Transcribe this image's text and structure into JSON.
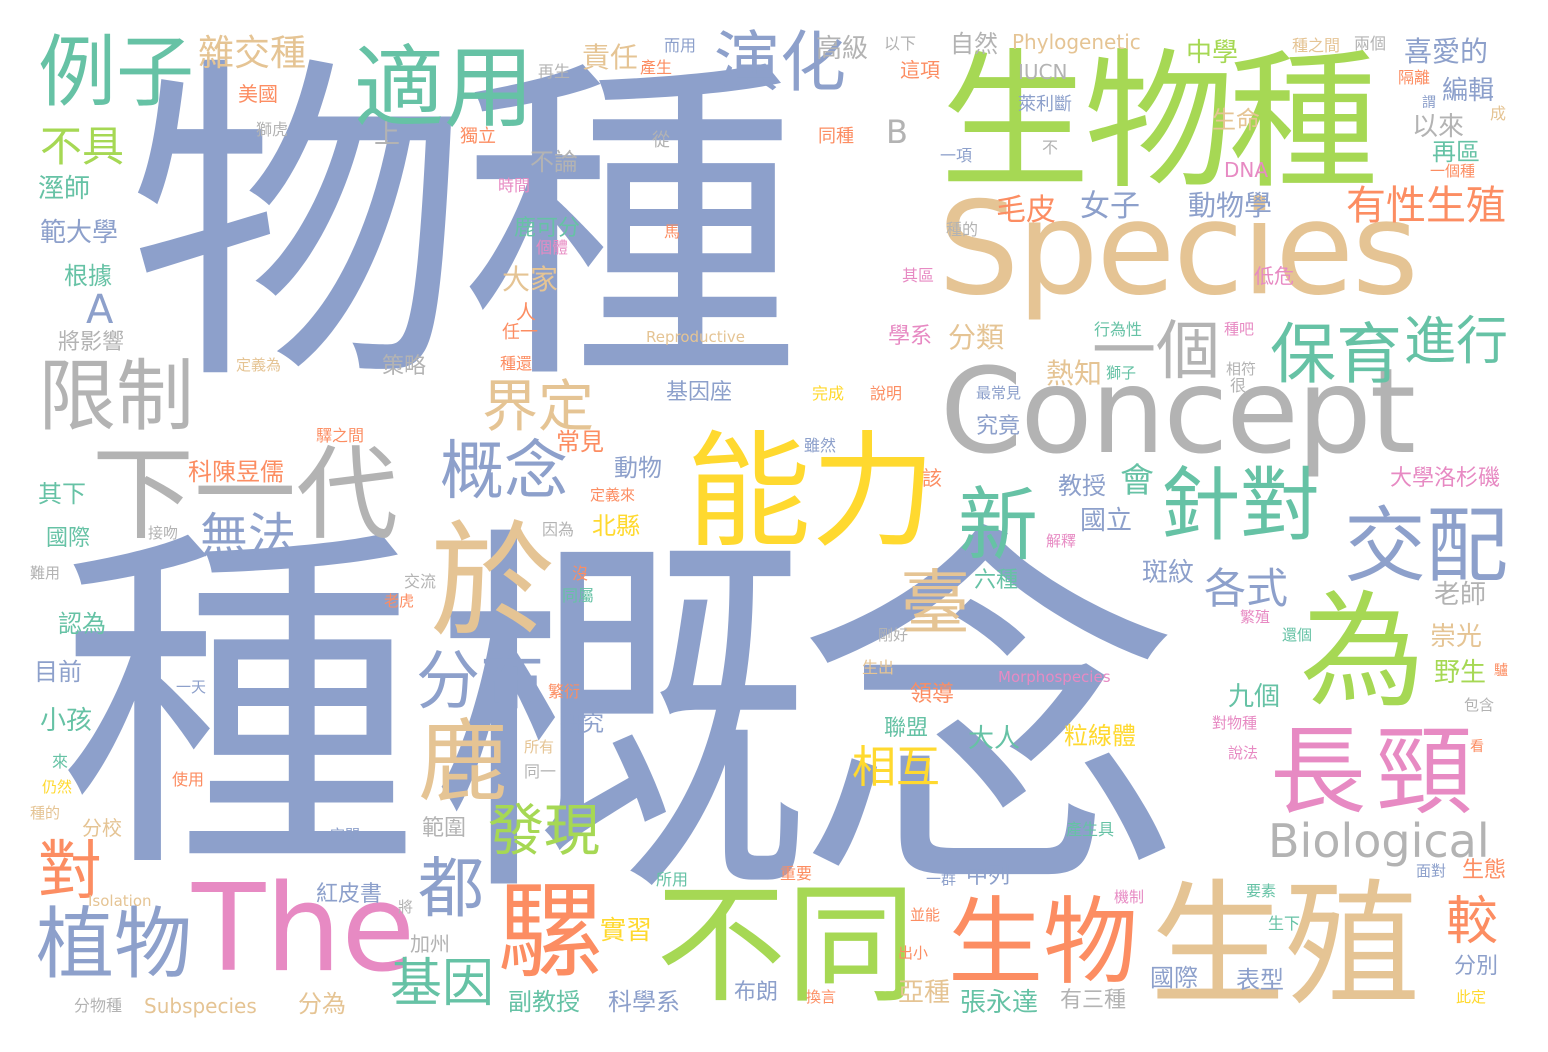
{
  "palette": {
    "blue": "#8da0cb",
    "green": "#a6d854",
    "teal": "#66c2a5",
    "orange": "#fc8d62",
    "pink": "#e78ac3",
    "yellow": "#ffd92f",
    "tan": "#e5c494",
    "grey": "#b3b3b3"
  },
  "words": [
    {
      "text": "物種",
      "color": "blue"
    },
    {
      "text": "種",
      "color": "blue"
    },
    {
      "text": "概念",
      "color": "blue"
    },
    {
      "text": "生物種",
      "color": "green"
    },
    {
      "text": "Species",
      "color": "tan"
    },
    {
      "text": "Concept",
      "color": "grey"
    },
    {
      "text": "生殖",
      "color": "tan"
    },
    {
      "text": "能力",
      "color": "yellow"
    },
    {
      "text": "不同",
      "color": "green"
    },
    {
      "text": "The",
      "color": "pink"
    },
    {
      "text": "於",
      "color": "tan"
    },
    {
      "text": "為",
      "color": "green"
    },
    {
      "text": "下一代",
      "color": "grey"
    },
    {
      "text": "長頸",
      "color": "pink"
    },
    {
      "text": "生物",
      "color": "orange"
    },
    {
      "text": "騾",
      "color": "orange"
    },
    {
      "text": "適用",
      "color": "teal"
    },
    {
      "text": "例子",
      "color": "teal"
    },
    {
      "text": "限制",
      "color": "grey"
    },
    {
      "text": "演化",
      "color": "blue"
    },
    {
      "text": "針對",
      "color": "teal"
    },
    {
      "text": "交配",
      "color": "blue"
    },
    {
      "text": "鹿",
      "color": "tan"
    },
    {
      "text": "保育",
      "color": "teal"
    },
    {
      "text": "新",
      "color": "teal"
    },
    {
      "text": "一個",
      "color": "grey"
    },
    {
      "text": "植物",
      "color": "blue"
    },
    {
      "text": "概念",
      "color": "blue"
    },
    {
      "text": "都",
      "color": "blue"
    },
    {
      "text": "分布",
      "color": "blue"
    },
    {
      "text": "Biological",
      "color": "grey"
    },
    {
      "text": "發現",
      "color": "green"
    },
    {
      "text": "進行",
      "color": "teal"
    },
    {
      "text": "界定",
      "color": "tan"
    },
    {
      "text": "臺",
      "color": "tan"
    },
    {
      "text": "對",
      "color": "orange"
    },
    {
      "text": "無法",
      "color": "blue"
    },
    {
      "text": "有性生殖",
      "color": "orange"
    },
    {
      "text": "基因",
      "color": "teal"
    },
    {
      "text": "相互",
      "color": "yellow"
    },
    {
      "text": "各式",
      "color": "blue"
    },
    {
      "text": "較",
      "color": "orange"
    },
    {
      "text": "雜交種",
      "color": "tan"
    },
    {
      "text": "不具",
      "color": "green"
    },
    {
      "text": "A",
      "color": "blue"
    },
    {
      "text": "B",
      "color": "grey"
    },
    {
      "text": "毛皮",
      "color": "orange"
    },
    {
      "text": "分類",
      "color": "tan"
    },
    {
      "text": "女子",
      "color": "blue"
    },
    {
      "text": "動物學",
      "color": "blue"
    },
    {
      "text": "熱知",
      "color": "tan"
    },
    {
      "text": "會",
      "color": "teal"
    },
    {
      "text": "教授",
      "color": "blue"
    },
    {
      "text": "國立",
      "color": "blue"
    },
    {
      "text": "斑紋",
      "color": "blue"
    },
    {
      "text": "大家",
      "color": "tan"
    },
    {
      "text": "Phylogenetic",
      "color": "tan"
    },
    {
      "text": "IUCN",
      "color": "grey"
    },
    {
      "text": "中學",
      "color": "green"
    },
    {
      "text": "責任",
      "color": "tan"
    },
    {
      "text": "高級",
      "color": "grey"
    },
    {
      "text": "自然",
      "color": "grey"
    },
    {
      "text": "喜愛的",
      "color": "blue"
    },
    {
      "text": "編輯",
      "color": "blue"
    },
    {
      "text": "以來",
      "color": "grey"
    },
    {
      "text": "再區",
      "color": "teal"
    },
    {
      "text": "生命",
      "color": "tan"
    },
    {
      "text": "美國",
      "color": "orange"
    },
    {
      "text": "不論",
      "color": "grey"
    },
    {
      "text": "溼師",
      "color": "teal"
    },
    {
      "text": "範大學",
      "color": "blue"
    },
    {
      "text": "根據",
      "color": "teal"
    },
    {
      "text": "將影響",
      "color": "grey"
    },
    {
      "text": "策略",
      "color": "grey"
    },
    {
      "text": "鹿可分",
      "color": "teal"
    },
    {
      "text": "科陳昱儒",
      "color": "orange"
    },
    {
      "text": "其下",
      "color": "teal"
    },
    {
      "text": "國際",
      "color": "teal"
    },
    {
      "text": "北縣",
      "color": "yellow"
    },
    {
      "text": "動物",
      "color": "blue"
    },
    {
      "text": "認為",
      "color": "teal"
    },
    {
      "text": "目前",
      "color": "blue"
    },
    {
      "text": "小孩",
      "color": "teal"
    },
    {
      "text": "研究",
      "color": "blue"
    },
    {
      "text": "分校",
      "color": "tan"
    },
    {
      "text": "範圍",
      "color": "grey"
    },
    {
      "text": "紅皮書",
      "color": "blue"
    },
    {
      "text": "加州",
      "color": "grey"
    },
    {
      "text": "Subspecies",
      "color": "tan"
    },
    {
      "text": "分為",
      "color": "tan"
    },
    {
      "text": "實習",
      "color": "yellow"
    },
    {
      "text": "副教授",
      "color": "teal"
    },
    {
      "text": "科學系",
      "color": "blue"
    },
    {
      "text": "布朗",
      "color": "blue"
    },
    {
      "text": "亞種",
      "color": "tan"
    },
    {
      "text": "張永達",
      "color": "teal"
    },
    {
      "text": "有三種",
      "color": "grey"
    },
    {
      "text": "國際",
      "color": "blue"
    },
    {
      "text": "表型",
      "color": "blue"
    },
    {
      "text": "分別",
      "color": "blue"
    },
    {
      "text": "崇光",
      "color": "tan"
    },
    {
      "text": "野生",
      "color": "green"
    },
    {
      "text": "老師",
      "color": "grey"
    },
    {
      "text": "九個",
      "color": "teal"
    },
    {
      "text": "大學洛杉磯",
      "color": "pink"
    },
    {
      "text": "六種",
      "color": "teal"
    },
    {
      "text": "聯盟",
      "color": "teal"
    },
    {
      "text": "大人",
      "color": "teal"
    },
    {
      "text": "粒線體",
      "color": "yellow"
    },
    {
      "text": "領導",
      "color": "orange"
    },
    {
      "text": "中列",
      "color": "blue"
    },
    {
      "text": "究竟",
      "color": "blue"
    },
    {
      "text": "學系",
      "color": "pink"
    },
    {
      "text": "基因座",
      "color": "blue"
    },
    {
      "text": "DNA",
      "color": "pink"
    },
    {
      "text": "Reproductive",
      "color": "tan"
    },
    {
      "text": "Morphospecies",
      "color": "pink"
    },
    {
      "text": "Isolation",
      "color": "tan"
    },
    {
      "text": "生態",
      "color": "orange"
    },
    {
      "text": "上",
      "color": "grey"
    },
    {
      "text": "人",
      "color": "orange"
    },
    {
      "text": "任一",
      "color": "orange"
    },
    {
      "text": "常見",
      "color": "orange"
    },
    {
      "text": "而用",
      "color": "blue"
    },
    {
      "text": "以下",
      "color": "grey"
    },
    {
      "text": "這項",
      "color": "orange"
    },
    {
      "text": "再生",
      "color": "grey"
    },
    {
      "text": "產生",
      "color": "orange"
    },
    {
      "text": "獅虎",
      "color": "grey"
    },
    {
      "text": "獨立",
      "color": "orange"
    },
    {
      "text": "從",
      "color": "grey"
    },
    {
      "text": "同種",
      "color": "orange"
    },
    {
      "text": "一項",
      "color": "blue"
    },
    {
      "text": "萊利斷",
      "color": "blue"
    },
    {
      "text": "不",
      "color": "grey"
    },
    {
      "text": "種之間",
      "color": "tan"
    },
    {
      "text": "兩個",
      "color": "grey"
    },
    {
      "text": "隔離",
      "color": "orange"
    },
    {
      "text": "謂",
      "color": "blue"
    },
    {
      "text": "成",
      "color": "tan"
    },
    {
      "text": "一個種",
      "color": "orange"
    },
    {
      "text": "時間",
      "color": "pink"
    },
    {
      "text": "個體",
      "color": "pink"
    },
    {
      "text": "馬",
      "color": "orange"
    },
    {
      "text": "種的",
      "color": "grey"
    },
    {
      "text": "其區",
      "color": "pink"
    },
    {
      "text": "低危",
      "color": "pink"
    },
    {
      "text": "行為性",
      "color": "teal"
    },
    {
      "text": "種吧",
      "color": "pink"
    },
    {
      "text": "獅子",
      "color": "teal"
    },
    {
      "text": "相符",
      "color": "grey"
    },
    {
      "text": "很",
      "color": "grey"
    },
    {
      "text": "定義為",
      "color": "tan"
    },
    {
      "text": "種還",
      "color": "orange"
    },
    {
      "text": "最常見",
      "color": "blue"
    },
    {
      "text": "完成",
      "color": "yellow"
    },
    {
      "text": "說明",
      "color": "orange"
    },
    {
      "text": "雖然",
      "color": "blue"
    },
    {
      "text": "該",
      "color": "orange"
    },
    {
      "text": "解釋",
      "color": "pink"
    },
    {
      "text": "驛之間",
      "color": "orange"
    },
    {
      "text": "定義來",
      "color": "orange"
    },
    {
      "text": "因為",
      "color": "grey"
    },
    {
      "text": "接吻",
      "color": "grey"
    },
    {
      "text": "沒",
      "color": "orange"
    },
    {
      "text": "難用",
      "color": "grey"
    },
    {
      "text": "交流",
      "color": "grey"
    },
    {
      "text": "老虎",
      "color": "orange"
    },
    {
      "text": "同屬",
      "color": "teal"
    },
    {
      "text": "剛好",
      "color": "grey"
    },
    {
      "text": "生出",
      "color": "tan"
    },
    {
      "text": "繁殖",
      "color": "pink"
    },
    {
      "text": "還個",
      "color": "teal"
    },
    {
      "text": "驢",
      "color": "orange"
    },
    {
      "text": "繁衍",
      "color": "orange"
    },
    {
      "text": "一天",
      "color": "blue"
    },
    {
      "text": "所有",
      "color": "tan"
    },
    {
      "text": "同一",
      "color": "grey"
    },
    {
      "text": "對物種",
      "color": "pink"
    },
    {
      "text": "包含",
      "color": "grey"
    },
    {
      "text": "說法",
      "color": "pink"
    },
    {
      "text": "看",
      "color": "orange"
    },
    {
      "text": "來",
      "color": "teal"
    },
    {
      "text": "仍然",
      "color": "yellow"
    },
    {
      "text": "種的",
      "color": "tan"
    },
    {
      "text": "使用",
      "color": "orange"
    },
    {
      "text": "空間",
      "color": "blue"
    },
    {
      "text": "產生具",
      "color": "teal"
    },
    {
      "text": "一群",
      "color": "blue"
    },
    {
      "text": "所用",
      "color": "teal"
    },
    {
      "text": "重要",
      "color": "orange"
    },
    {
      "text": "要素",
      "color": "teal"
    },
    {
      "text": "面對",
      "color": "blue"
    },
    {
      "text": "將",
      "color": "grey"
    },
    {
      "text": "機制",
      "color": "pink"
    },
    {
      "text": "並能",
      "color": "orange"
    },
    {
      "text": "生下",
      "color": "teal"
    },
    {
      "text": "出小",
      "color": "orange"
    },
    {
      "text": "換言",
      "color": "orange"
    },
    {
      "text": "此定",
      "color": "yellow"
    },
    {
      "text": "分物種",
      "color": "grey"
    }
  ]
}
